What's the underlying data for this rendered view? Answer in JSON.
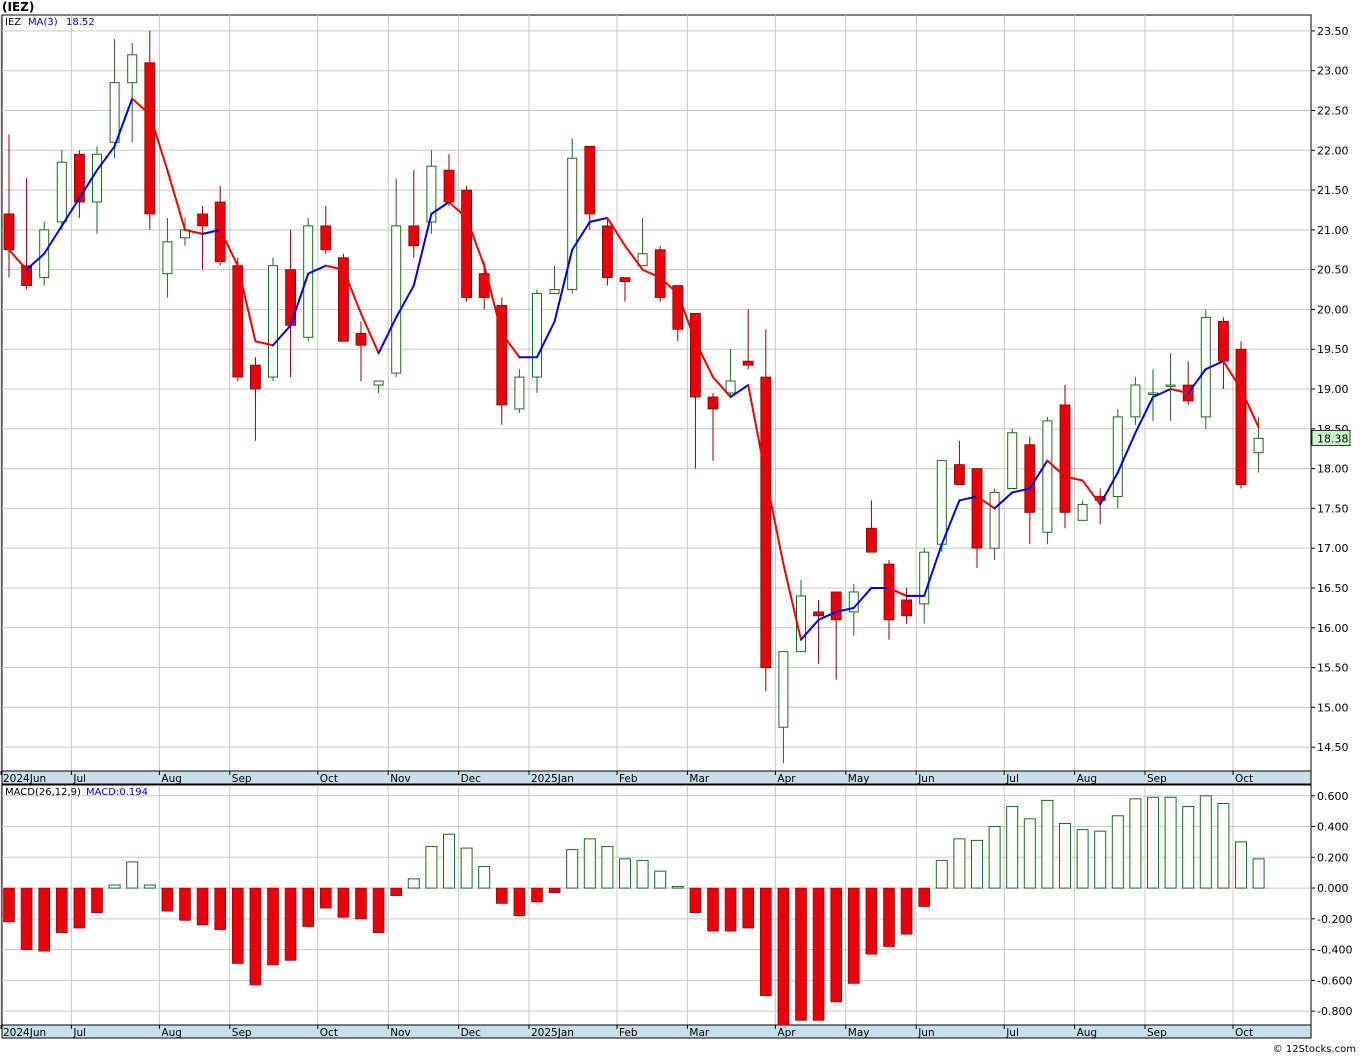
{
  "title": "(IEZ)",
  "copyright": "© 12Stocks.com",
  "colors": {
    "up": "#1a6b1a",
    "down": "#e8000b",
    "ma_up": "#0000dd",
    "ma_down": "#ee0000",
    "grid": "#c8c8c8",
    "axis_band": "#c8dfea",
    "price_tag": "#c8ffc8"
  },
  "chart_data": [
    {
      "type": "candlestick",
      "series": "IEZ",
      "legend": {
        "symbol": "IEZ",
        "ma_label": "MA(3)",
        "ma_value": "18.52"
      },
      "last_price": "18.38",
      "y_ticks": [
        "14.50",
        "15.00",
        "15.50",
        "16.00",
        "16.50",
        "17.00",
        "17.50",
        "18.00",
        "18.50",
        "19.00",
        "19.50",
        "20.00",
        "20.50",
        "21.00",
        "21.50",
        "22.00",
        "22.50",
        "23.00",
        "23.50"
      ],
      "y_range": [
        14.2,
        23.7
      ],
      "x_labels": [
        "2024Jun",
        "Jul",
        "Aug",
        "Sep",
        "Oct",
        "Nov",
        "Dec",
        "2025Jan",
        "Feb",
        "Mar",
        "Apr",
        "May",
        "Jun",
        "Jul",
        "Aug",
        "Sep",
        "Oct"
      ],
      "x_label_weeks": [
        0,
        4,
        9,
        13,
        18,
        22,
        26,
        30,
        35,
        39,
        44,
        48,
        52,
        57,
        61,
        65,
        70
      ],
      "candles": [
        [
          21.2,
          22.2,
          20.4,
          20.75
        ],
        [
          20.55,
          21.65,
          20.25,
          20.3
        ],
        [
          20.4,
          21.1,
          20.3,
          21.0
        ],
        [
          21.1,
          22.0,
          21.0,
          21.85
        ],
        [
          21.95,
          22.0,
          21.15,
          21.35
        ],
        [
          21.35,
          22.05,
          20.95,
          21.95
        ],
        [
          22.1,
          23.4,
          21.9,
          22.85
        ],
        [
          22.85,
          23.35,
          22.1,
          23.2
        ],
        [
          23.1,
          23.5,
          21.0,
          21.2
        ],
        [
          20.45,
          21.15,
          20.15,
          20.85
        ],
        [
          20.9,
          21.15,
          20.8,
          21.0
        ],
        [
          21.2,
          21.3,
          20.5,
          21.05
        ],
        [
          21.35,
          21.55,
          20.55,
          20.6
        ],
        [
          20.55,
          20.65,
          19.1,
          19.15
        ],
        [
          19.3,
          19.4,
          18.35,
          19.0
        ],
        [
          19.15,
          20.65,
          19.1,
          20.55
        ],
        [
          20.5,
          21.0,
          19.15,
          19.8
        ],
        [
          19.65,
          21.15,
          19.6,
          21.05
        ],
        [
          21.05,
          21.3,
          20.7,
          20.75
        ],
        [
          20.65,
          20.7,
          19.6,
          19.6
        ],
        [
          19.7,
          19.85,
          19.1,
          19.55
        ],
        [
          19.05,
          19.1,
          18.95,
          19.1
        ],
        [
          19.2,
          21.65,
          19.15,
          21.05
        ],
        [
          21.05,
          21.75,
          20.65,
          20.8
        ],
        [
          21.1,
          22.0,
          20.95,
          21.8
        ],
        [
          21.75,
          21.95,
          21.3,
          21.35
        ],
        [
          21.5,
          21.55,
          20.1,
          20.15
        ],
        [
          20.45,
          20.6,
          20.0,
          20.15
        ],
        [
          20.05,
          20.15,
          18.55,
          18.8
        ],
        [
          18.75,
          19.25,
          18.7,
          19.15
        ],
        [
          19.15,
          20.25,
          18.95,
          20.2
        ],
        [
          20.2,
          20.55,
          20.2,
          20.25
        ],
        [
          20.25,
          22.15,
          20.2,
          21.9
        ],
        [
          22.05,
          22.05,
          21.0,
          21.2
        ],
        [
          21.05,
          21.15,
          20.3,
          20.4
        ],
        [
          20.4,
          20.4,
          20.1,
          20.35
        ],
        [
          20.55,
          21.15,
          20.6,
          20.7
        ],
        [
          20.75,
          20.8,
          20.1,
          20.15
        ],
        [
          20.3,
          20.3,
          19.6,
          19.75
        ],
        [
          19.95,
          19.95,
          18.0,
          18.9
        ],
        [
          18.9,
          18.95,
          18.1,
          18.75
        ],
        [
          18.95,
          19.5,
          18.9,
          19.1
        ],
        [
          19.35,
          20.0,
          19.25,
          19.3
        ],
        [
          19.15,
          19.75,
          15.2,
          15.5
        ],
        [
          14.75,
          15.7,
          14.3,
          15.7
        ],
        [
          15.7,
          16.6,
          15.7,
          16.4
        ],
        [
          16.2,
          16.35,
          15.55,
          16.15
        ],
        [
          16.45,
          16.45,
          15.35,
          16.1
        ],
        [
          16.2,
          16.55,
          15.9,
          16.45
        ],
        [
          17.25,
          17.6,
          16.95,
          16.95
        ],
        [
          16.8,
          16.85,
          15.85,
          16.1
        ],
        [
          16.35,
          16.5,
          16.05,
          16.15
        ],
        [
          16.3,
          17.0,
          16.05,
          16.95
        ],
        [
          17.05,
          18.1,
          16.95,
          18.1
        ],
        [
          18.05,
          18.35,
          17.8,
          17.8
        ],
        [
          18.0,
          18.0,
          16.75,
          17.0
        ],
        [
          17.0,
          17.75,
          16.85,
          17.7
        ],
        [
          17.75,
          18.5,
          17.75,
          18.45
        ],
        [
          18.3,
          18.4,
          17.05,
          17.45
        ],
        [
          17.2,
          18.65,
          17.05,
          18.6
        ],
        [
          18.8,
          19.05,
          17.25,
          17.45
        ],
        [
          17.35,
          17.6,
          17.35,
          17.55
        ],
        [
          17.65,
          17.75,
          17.3,
          17.6
        ],
        [
          17.65,
          18.75,
          17.5,
          18.65
        ],
        [
          18.65,
          19.15,
          18.55,
          19.05
        ],
        [
          18.95,
          19.25,
          18.6,
          18.95
        ],
        [
          19.05,
          19.45,
          18.6,
          19.05
        ],
        [
          19.05,
          19.35,
          18.8,
          18.85
        ],
        [
          18.65,
          20.0,
          18.5,
          19.9
        ],
        [
          19.85,
          19.9,
          19.0,
          19.35
        ],
        [
          19.5,
          19.6,
          17.75,
          17.8
        ],
        [
          18.2,
          18.65,
          17.95,
          18.38
        ]
      ],
      "ma3": [
        20.75,
        20.5,
        20.7,
        21.05,
        21.4,
        21.75,
        22.05,
        22.65,
        22.45,
        21.75,
        21.0,
        20.95,
        21.0,
        20.55,
        19.6,
        19.55,
        19.8,
        20.45,
        20.55,
        20.5,
        19.95,
        19.45,
        19.9,
        20.3,
        21.2,
        21.35,
        21.15,
        20.55,
        19.7,
        19.4,
        19.4,
        19.85,
        20.75,
        21.1,
        21.15,
        20.8,
        20.5,
        20.4,
        20.2,
        19.6,
        19.15,
        18.9,
        19.05,
        17.9,
        16.8,
        15.85,
        16.1,
        16.2,
        16.25,
        16.5,
        16.5,
        16.4,
        16.4,
        17.05,
        17.6,
        17.65,
        17.5,
        17.7,
        17.75,
        18.1,
        17.9,
        17.85,
        17.55,
        17.95,
        18.45,
        18.9,
        19.0,
        18.95,
        19.25,
        19.35,
        19.0,
        18.52
      ]
    },
    {
      "type": "bar",
      "series": "MACD",
      "legend": {
        "params": "MACD(26,12,9)",
        "value_label": "MACD:0.194"
      },
      "y_ticks": [
        "-0.800",
        "-0.600",
        "-0.400",
        "-0.200",
        "0.000",
        "0.200",
        "0.400",
        "0.600"
      ],
      "y_range": [
        -0.89,
        0.67
      ],
      "values": [
        -0.22,
        -0.4,
        -0.41,
        -0.29,
        -0.26,
        -0.16,
        0.02,
        0.17,
        0.02,
        -0.15,
        -0.21,
        -0.24,
        -0.27,
        -0.49,
        -0.63,
        -0.5,
        -0.47,
        -0.25,
        -0.13,
        -0.19,
        -0.2,
        -0.29,
        -0.05,
        0.06,
        0.27,
        0.35,
        0.26,
        0.14,
        -0.1,
        -0.18,
        -0.09,
        -0.03,
        0.25,
        0.32,
        0.27,
        0.19,
        0.18,
        0.11,
        0.01,
        -0.16,
        -0.28,
        -0.28,
        -0.26,
        -0.7,
        -0.89,
        -0.86,
        -0.86,
        -0.74,
        -0.62,
        -0.43,
        -0.38,
        -0.3,
        -0.12,
        0.18,
        0.32,
        0.31,
        0.4,
        0.53,
        0.45,
        0.57,
        0.42,
        0.38,
        0.37,
        0.47,
        0.58,
        0.59,
        0.59,
        0.53,
        0.6,
        0.55,
        0.3,
        0.19
      ]
    }
  ]
}
